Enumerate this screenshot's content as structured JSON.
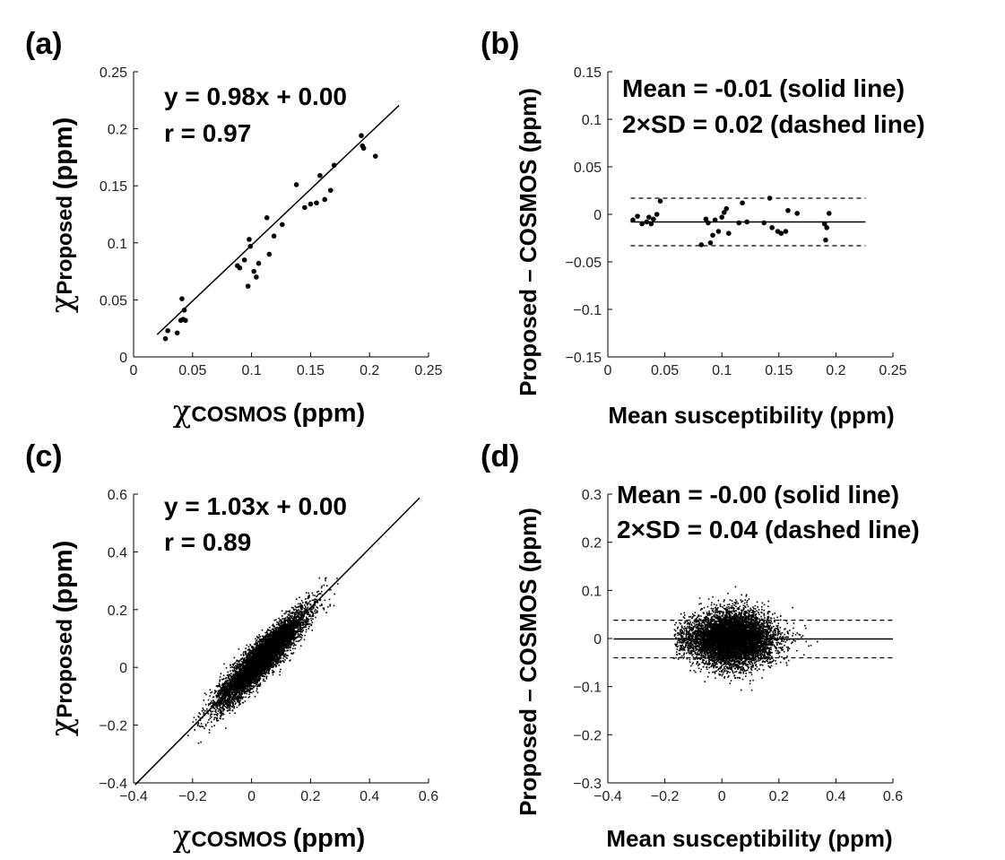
{
  "chart_data": [
    {
      "panel": "(a)",
      "type": "scatter",
      "xlabel_symbol": "χ",
      "xlabel_sub": "COSMOS",
      "xlabel_unit": "(ppm)",
      "ylabel_symbol": "χ",
      "ylabel_sub": "Proposed",
      "ylabel_unit": "(ppm)",
      "xlim": [
        0,
        0.25
      ],
      "ylim": [
        0,
        0.25
      ],
      "xticks": [
        "0",
        "0.05",
        "0.1",
        "0.15",
        "0.2",
        "0.25"
      ],
      "yticks": [
        "0",
        "0.05",
        "0.1",
        "0.15",
        "0.2",
        "0.25"
      ],
      "annotations": [
        "y = 0.98x + 0.00",
        "r = 0.97"
      ],
      "fit_line": {
        "slope": 0.98,
        "intercept": 0.0,
        "x_range": [
          0.02,
          0.225
        ]
      },
      "points": [
        [
          0.027,
          0.016
        ],
        [
          0.029,
          0.023
        ],
        [
          0.037,
          0.021
        ],
        [
          0.04,
          0.032
        ],
        [
          0.042,
          0.033
        ],
        [
          0.041,
          0.051
        ],
        [
          0.043,
          0.041
        ],
        [
          0.044,
          0.032
        ],
        [
          0.088,
          0.08
        ],
        [
          0.09,
          0.078
        ],
        [
          0.094,
          0.085
        ],
        [
          0.097,
          0.062
        ],
        [
          0.098,
          0.103
        ],
        [
          0.099,
          0.097
        ],
        [
          0.102,
          0.075
        ],
        [
          0.104,
          0.07
        ],
        [
          0.106,
          0.082
        ],
        [
          0.113,
          0.122
        ],
        [
          0.115,
          0.09
        ],
        [
          0.119,
          0.106
        ],
        [
          0.126,
          0.116
        ],
        [
          0.138,
          0.151
        ],
        [
          0.145,
          0.131
        ],
        [
          0.15,
          0.134
        ],
        [
          0.155,
          0.135
        ],
        [
          0.158,
          0.159
        ],
        [
          0.162,
          0.138
        ],
        [
          0.167,
          0.146
        ],
        [
          0.17,
          0.168
        ],
        [
          0.193,
          0.194
        ],
        [
          0.194,
          0.185
        ],
        [
          0.195,
          0.183
        ],
        [
          0.205,
          0.176
        ]
      ]
    },
    {
      "panel": "(b)",
      "type": "scatter",
      "xlabel": "Mean susceptibility",
      "xlabel_unit": "(ppm)",
      "ylabel": "Proposed – COSMOS (ppm)",
      "xlim": [
        0,
        0.25
      ],
      "ylim": [
        -0.15,
        0.15
      ],
      "xticks": [
        "0",
        "0.05",
        "0.1",
        "0.15",
        "0.2",
        "0.25"
      ],
      "yticks": [
        "−0.15",
        "−0.1",
        "−0.05",
        "0",
        "0.05",
        "0.1",
        "0.15"
      ],
      "annotations": [
        "Mean = -0.01 (solid line)",
        "2×SD = 0.02 (dashed line)"
      ],
      "mean_line": -0.008,
      "sd_lines": [
        0.017,
        -0.033
      ],
      "line_x_range": [
        0.02,
        0.226
      ],
      "points": [
        [
          0.022,
          -0.006
        ],
        [
          0.026,
          -0.002
        ],
        [
          0.03,
          -0.01
        ],
        [
          0.034,
          -0.008
        ],
        [
          0.036,
          -0.003
        ],
        [
          0.038,
          -0.01
        ],
        [
          0.04,
          -0.005
        ],
        [
          0.043,
          0.0
        ],
        [
          0.046,
          0.014
        ],
        [
          0.082,
          -0.032
        ],
        [
          0.086,
          -0.005
        ],
        [
          0.088,
          -0.009
        ],
        [
          0.09,
          -0.03
        ],
        [
          0.092,
          -0.022
        ],
        [
          0.094,
          -0.006
        ],
        [
          0.097,
          -0.018
        ],
        [
          0.1,
          -0.003
        ],
        [
          0.102,
          0.002
        ],
        [
          0.104,
          0.006
        ],
        [
          0.106,
          -0.02
        ],
        [
          0.115,
          -0.009
        ],
        [
          0.118,
          0.012
        ],
        [
          0.122,
          -0.008
        ],
        [
          0.137,
          -0.009
        ],
        [
          0.142,
          0.017
        ],
        [
          0.144,
          -0.014
        ],
        [
          0.149,
          -0.018
        ],
        [
          0.152,
          -0.02
        ],
        [
          0.156,
          -0.018
        ],
        [
          0.158,
          0.004
        ],
        [
          0.166,
          0.001
        ],
        [
          0.19,
          -0.01
        ],
        [
          0.191,
          -0.027
        ],
        [
          0.192,
          -0.014
        ],
        [
          0.194,
          0.001
        ]
      ]
    },
    {
      "panel": "(c)",
      "type": "scatter",
      "xlabel_symbol": "χ",
      "xlabel_sub": "COSMOS",
      "xlabel_unit": "(ppm)",
      "ylabel_symbol": "χ",
      "ylabel_sub": "Proposed",
      "ylabel_unit": "(ppm)",
      "xlim": [
        -0.4,
        0.6
      ],
      "ylim": [
        -0.4,
        0.6
      ],
      "xticks": [
        "−0.4",
        "−0.2",
        "0",
        "0.2",
        "0.4",
        "0.6"
      ],
      "yticks": [
        "−0.4",
        "−0.2",
        "0",
        "0.2",
        "0.4",
        "0.6"
      ],
      "annotations": [
        "y = 1.03x + 0.00",
        "r = 0.89"
      ],
      "fit_line": {
        "slope": 1.03,
        "intercept": 0.0,
        "x_range": [
          -0.395,
          0.57
        ]
      },
      "cloud": {
        "count": 7000,
        "x_range": [
          -0.22,
          0.42
        ],
        "slope": 1.0,
        "spread": 0.032,
        "seed": 7
      }
    },
    {
      "panel": "(d)",
      "type": "scatter",
      "xlabel": "Mean susceptibility",
      "xlabel_unit": "(ppm)",
      "ylabel": "Proposed – COSMOS (ppm)",
      "xlim": [
        -0.4,
        0.6
      ],
      "ylim": [
        -0.3,
        0.3
      ],
      "xticks": [
        "−0.4",
        "−0.2",
        "0",
        "0.2",
        "0.4",
        "0.6"
      ],
      "yticks": [
        "−0.3",
        "−0.2",
        "−0.1",
        "0",
        "0.1",
        "0.2",
        "0.3"
      ],
      "annotations": [
        "Mean = -0.00 (solid line)",
        "2×SD = 0.04 (dashed line)"
      ],
      "mean_line": -0.001,
      "sd_lines": [
        0.038,
        -0.04
      ],
      "line_x_range": [
        -0.38,
        0.6
      ],
      "cloud": {
        "count": 7000,
        "x_range": [
          -0.17,
          0.36
        ],
        "spread": 0.03,
        "seed": 11
      }
    }
  ]
}
